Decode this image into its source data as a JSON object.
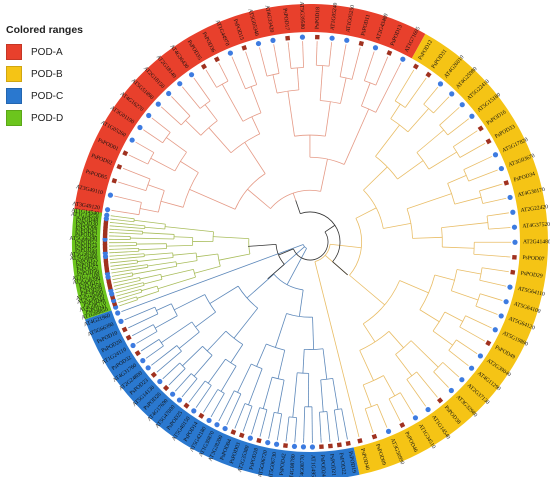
{
  "legend": {
    "title": "Colored ranges",
    "items": [
      {
        "label": "POD-A",
        "color": "#e8402c"
      },
      {
        "label": "POD-B",
        "color": "#f5c415"
      },
      {
        "label": "POD-C",
        "color": "#2a78cf"
      },
      {
        "label": "POD-D",
        "color": "#6cc51d"
      }
    ]
  },
  "clades": [
    {
      "name": "POD-A",
      "color": "#e8402c",
      "branch_color": "#e59a86",
      "labels": [
        "AT3G49120",
        "AT3G49110",
        "PsPOD05",
        "PsPOD02",
        "PsPOD01",
        "AT1G05260",
        "AT3G01190",
        "AT4G16270",
        "AT5G51890",
        "AT2G18150",
        "AT2G18140",
        "AT4G36430",
        "PsPOD35",
        "PsPOD36",
        "AT1G44970",
        "PsPOD15",
        "AT5G05340",
        "AT4G33420",
        "PsPOD17",
        "AT5G39580",
        "PsPOD18",
        "AT1G05240",
        "AT1G05250",
        "PsPOD11",
        "AT2G43480",
        "PsPOD13",
        "AT1G71695"
      ]
    },
    {
      "name": "POD-B",
      "color": "#f5c415",
      "branch_color": "#e9bd66",
      "labels": [
        "PsPOD12",
        "PsPOD31",
        "AT4G26010",
        "AT4G25980",
        "AT5G22410",
        "AT5G15180",
        "PsPOD16",
        "PsPOD33",
        "AT5G17820",
        "AT3G03670",
        "PsPOD34",
        "AT4G30170",
        "AT2G22420",
        "AT4G37520",
        "AT2G41480",
        "PsPOD07",
        "PsPOD29",
        "AT5G64110",
        "AT5G64100",
        "AT5G64120",
        "AT5G19890",
        "PsPOD49",
        "AT2G39040",
        "AT4G11290",
        "AT2G37130",
        "AT3G32980",
        "PsPOD38",
        "AT1G14540",
        "AT1G34510",
        "PsPOD46",
        "AT3G50990",
        "PsPOD09",
        "PsPOD40"
      ]
    },
    {
      "name": "POD-C",
      "color": "#2a78cf",
      "branch_color": "#5d88ba",
      "labels": [
        "PsPOD19",
        "PsPOD22",
        "PsPOD21",
        "PsPOD24",
        "AT1G49570",
        "AT4G08770",
        "AT4G08780",
        "PsPOD42",
        "AT5G06730",
        "AT5G06720",
        "PsPOD28",
        "AT2G35380",
        "PsPOD03",
        "PsPOD04",
        "AT3G28200",
        "AT1G30870",
        "AT5G42180",
        "PsPOD14",
        "AT5G40150",
        "PsPOD25",
        "AT5G47000",
        "AT4G17690",
        "PsPOD26",
        "AT5G14130",
        "PsPOD23",
        "AT2G24800",
        "AT4G31760",
        "PsPOD32",
        "AT1G24110",
        "PsPOD20",
        "PsPOD10",
        "AT5G66390",
        "AT4G21960"
      ]
    },
    {
      "name": "POD-D",
      "color": "#6cc51d",
      "branch_color": "#a9bd5c",
      "labels": [
        "AT1G68850",
        "PsPOD41",
        "AT4G08770",
        "PsPOD44",
        "AT2G38390",
        "AT3G28200",
        "PsPOD59",
        "PsPOD58",
        "PsPOD27",
        "AT5G58390",
        "AT1G77100",
        "PsPOD56",
        "PsPOD57",
        "PsPOD61",
        "PsPOD53",
        "AT5G58400",
        "AT5G58390",
        "PsPOD55",
        "PsPOD54",
        "PsPOD52",
        "AT5G66390",
        "PsPOD62",
        "PsPOD63",
        "PsPOD06",
        "PsPOD30",
        "PsPOD48",
        "AT1G14550",
        "AT1G14540"
      ]
    }
  ]
}
